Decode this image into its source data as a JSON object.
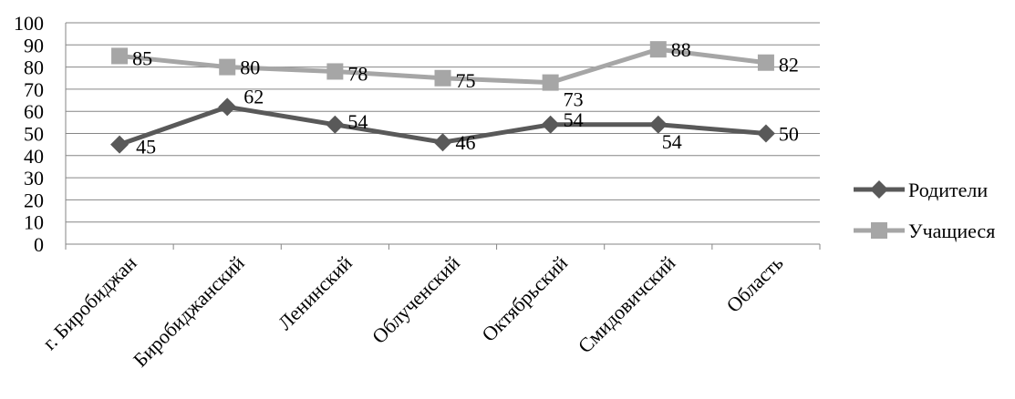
{
  "chart_data": {
    "type": "line",
    "categories": [
      "г. Биробиджан",
      "Биробиджанский",
      "Ленинский",
      "Облученский",
      "Октябрьский",
      "Смидовичский",
      "Область"
    ],
    "series": [
      {
        "name": "Родители",
        "values": [
          45,
          62,
          54,
          46,
          54,
          54,
          50
        ],
        "color": "#595959",
        "marker": "diamond"
      },
      {
        "name": "Учащиеся",
        "values": [
          85,
          80,
          78,
          75,
          73,
          88,
          82
        ],
        "color": "#a6a6a6",
        "marker": "square"
      }
    ],
    "ylim": [
      0,
      100
    ],
    "yticks": [
      0,
      10,
      20,
      30,
      40,
      50,
      60,
      70,
      80,
      90,
      100
    ],
    "grid": true,
    "legend_position": "right",
    "title": "",
    "xlabel": "",
    "ylabel": ""
  }
}
